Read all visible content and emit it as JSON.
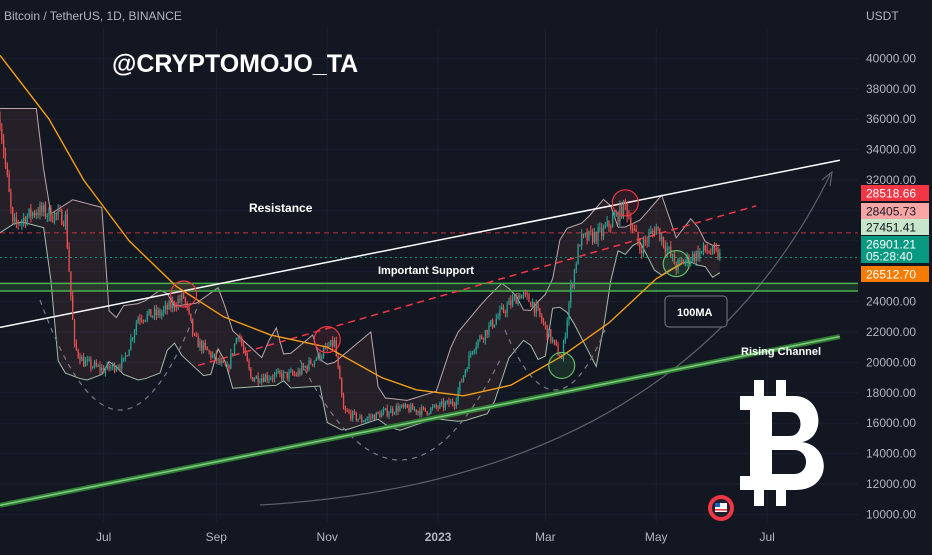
{
  "header": {
    "symbol": "Bitcoin / TetherUS, 1D, BINANCE",
    "currency": "USDT",
    "watermark": "@CRYPTOMOJO_TA"
  },
  "colors": {
    "background": "#131722",
    "grid": "#1c2030",
    "axis_text": "#b2b5be",
    "candle_up": "#26a69a",
    "candle_down": "#ef5350",
    "ma_line": "#f59d18",
    "support_band": "#4caf50",
    "channel": "#4caf50",
    "resistance": "#ffffff",
    "dashed_red": "#f23645",
    "bitcoin_logo": "#ffffff"
  },
  "annotations": {
    "resistance": "Resistance",
    "important_support": "Important Support",
    "ma_label": "100MA",
    "rising_channel": "Rising Channel"
  },
  "chart_data": {
    "type": "candlestick",
    "title": "Bitcoin / TetherUS, 1D, BINANCE",
    "y_unit": "USDT",
    "y_ticks": [
      "40000.00",
      "38000.00",
      "36000.00",
      "34000.00",
      "32000.00",
      "30000.00",
      "28000.00",
      "26000.00",
      "24000.00",
      "22000.00",
      "20000.00",
      "18000.00",
      "16000.00",
      "14000.00",
      "12000.00",
      "10000.00"
    ],
    "x_ticks": [
      {
        "label": "Jul",
        "date": "2022-07-01"
      },
      {
        "label": "Sep",
        "date": "2022-09-01"
      },
      {
        "label": "Nov",
        "date": "2022-11-01"
      },
      {
        "label": "2023",
        "date": "2023-01-01"
      },
      {
        "label": "Mar",
        "date": "2023-03-01"
      },
      {
        "label": "May",
        "date": "2023-05-01"
      },
      {
        "label": "Jul",
        "date": "2023-07-01"
      }
    ],
    "ylim": [
      9500,
      42000
    ],
    "xlim": [
      "2022-05-05",
      "2023-08-20"
    ],
    "price_labels": [
      {
        "value": "28518.66",
        "color": "#f23645"
      },
      {
        "value": "28405.73",
        "color": "#f7a5a5"
      },
      {
        "value": "27451.41",
        "color": "#c8e6c9"
      },
      {
        "value": "26901.21",
        "color": "#089981"
      },
      {
        "value": "05:28:40",
        "color": "#089981"
      },
      {
        "value": "26512.70",
        "color": "#f57c00"
      }
    ],
    "price_levels": {
      "resistance_dashed": 28518.66,
      "current": 26901.21,
      "support_band": [
        24700,
        25200
      ]
    },
    "trendlines": {
      "resistance": [
        [
          "2022-05-05",
          22300
        ],
        [
          "2023-08-10",
          33300
        ]
      ],
      "rising_channel": [
        [
          "2022-05-05",
          10600
        ],
        [
          "2023-08-10",
          21700
        ]
      ],
      "red_dashed": [
        [
          "2022-08-22",
          19800
        ],
        [
          "2023-06-25",
          30300
        ]
      ]
    },
    "key_points": [
      {
        "date": "2022-08-14",
        "value": 24500,
        "type": "circle"
      },
      {
        "date": "2022-11-01",
        "value": 21500,
        "type": "circle"
      },
      {
        "date": "2023-03-10",
        "value": 19800,
        "type": "circle"
      },
      {
        "date": "2023-04-14",
        "value": 30500,
        "type": "circle"
      },
      {
        "date": "2023-05-12",
        "value": 26500,
        "type": "circle"
      }
    ],
    "ma_series_100": [
      [
        "2022-05-05",
        40200
      ],
      [
        "2022-06-01",
        36000
      ],
      [
        "2022-06-20",
        32000
      ],
      [
        "2022-07-15",
        28000
      ],
      [
        "2022-08-10",
        25000
      ],
      [
        "2022-09-05",
        23000
      ],
      [
        "2022-10-01",
        21800
      ],
      [
        "2022-11-01",
        21000
      ],
      [
        "2022-12-01",
        19000
      ],
      [
        "2022-12-20",
        18200
      ],
      [
        "2023-01-15",
        17800
      ],
      [
        "2023-02-10",
        18500
      ],
      [
        "2023-03-10",
        20400
      ],
      [
        "2023-04-05",
        22600
      ],
      [
        "2023-05-01",
        25500
      ],
      [
        "2023-05-15",
        26500
      ]
    ],
    "price_series": [
      [
        "2022-05-05",
        36000
      ],
      [
        "2022-05-12",
        29000
      ],
      [
        "2022-05-25",
        30000
      ],
      [
        "2022-06-10",
        29500
      ],
      [
        "2022-06-15",
        21000
      ],
      [
        "2022-06-20",
        20000
      ],
      [
        "2022-07-01",
        19500
      ],
      [
        "2022-07-12",
        20000
      ],
      [
        "2022-07-20",
        23000
      ],
      [
        "2022-08-01",
        23200
      ],
      [
        "2022-08-14",
        24300
      ],
      [
        "2022-08-20",
        21500
      ],
      [
        "2022-09-07",
        19500
      ],
      [
        "2022-09-13",
        22000
      ],
      [
        "2022-09-20",
        19000
      ],
      [
        "2022-10-15",
        19200
      ],
      [
        "2022-11-05",
        21300
      ],
      [
        "2022-11-10",
        16800
      ],
      [
        "2022-11-20",
        16200
      ],
      [
        "2022-12-10",
        17000
      ],
      [
        "2022-12-25",
        16800
      ],
      [
        "2023-01-10",
        17400
      ],
      [
        "2023-01-20",
        21000
      ],
      [
        "2023-02-05",
        23300
      ],
      [
        "2023-02-15",
        24500
      ],
      [
        "2023-02-22",
        23900
      ],
      [
        "2023-03-10",
        20200
      ],
      [
        "2023-03-15",
        24800
      ],
      [
        "2023-03-20",
        28000
      ],
      [
        "2023-04-01",
        28500
      ],
      [
        "2023-04-14",
        30300
      ],
      [
        "2023-04-22",
        27500
      ],
      [
        "2023-05-01",
        28900
      ],
      [
        "2023-05-12",
        26300
      ],
      [
        "2023-05-20",
        26900
      ],
      [
        "2023-05-28",
        27400
      ],
      [
        "2023-06-05",
        27000
      ]
    ]
  }
}
